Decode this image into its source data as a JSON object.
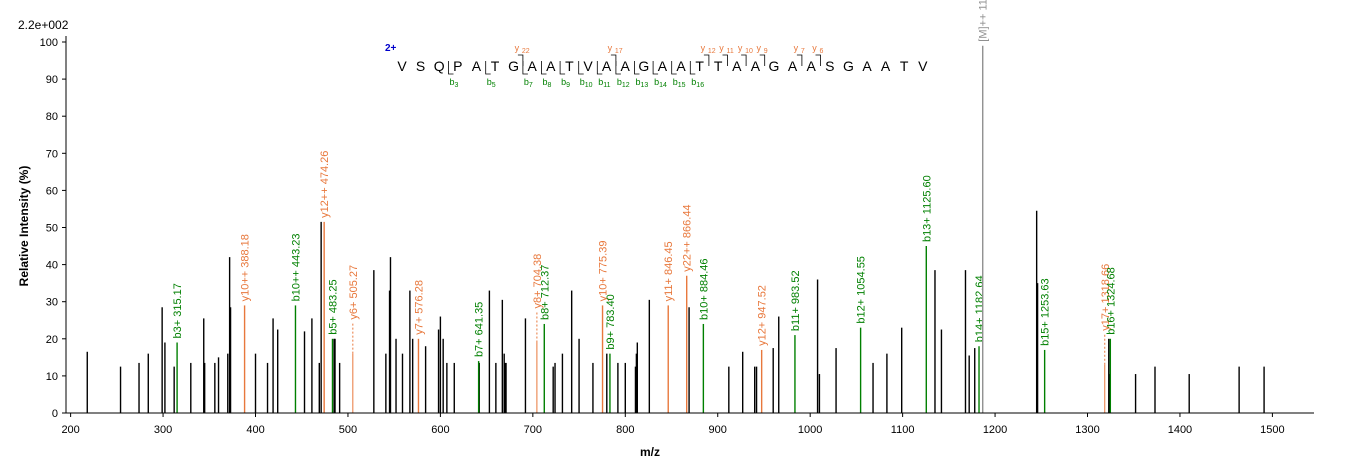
{
  "chart_data": {
    "type": "bar",
    "scale_label": "2.2e+002",
    "xlabel": "m/z",
    "ylabel": "Relative   Intensity (%)",
    "xlim": [
      195,
      1545
    ],
    "ylim": [
      0,
      100
    ],
    "xticks": [
      200,
      300,
      400,
      500,
      600,
      700,
      800,
      900,
      1000,
      1100,
      1200,
      1300,
      1400,
      1500
    ],
    "yticks": [
      0,
      10,
      20,
      30,
      40,
      50,
      60,
      70,
      80,
      90,
      100
    ],
    "colors": {
      "b": "#008000",
      "y": "#e8783c",
      "precursor": "#909090",
      "other": "#000000",
      "charge": "#0000cc"
    },
    "peaks": [
      {
        "mz": 218,
        "intensity": 16.5
      },
      {
        "mz": 254,
        "intensity": 12.5
      },
      {
        "mz": 274,
        "intensity": 13.5
      },
      {
        "mz": 284,
        "intensity": 16
      },
      {
        "mz": 299,
        "intensity": 28.5
      },
      {
        "mz": 302,
        "intensity": 19
      },
      {
        "mz": 312,
        "intensity": 12.5
      },
      {
        "mz": 330,
        "intensity": 13.5
      },
      {
        "mz": 344,
        "intensity": 25.5
      },
      {
        "mz": 345,
        "intensity": 13.5
      },
      {
        "mz": 356,
        "intensity": 13.5
      },
      {
        "mz": 360,
        "intensity": 15
      },
      {
        "mz": 370,
        "intensity": 16
      },
      {
        "mz": 372,
        "intensity": 42
      },
      {
        "mz": 373,
        "intensity": 28.5
      },
      {
        "mz": 400,
        "intensity": 16
      },
      {
        "mz": 413,
        "intensity": 13.5
      },
      {
        "mz": 419,
        "intensity": 25.5
      },
      {
        "mz": 424,
        "intensity": 22.5
      },
      {
        "mz": 453,
        "intensity": 22
      },
      {
        "mz": 461,
        "intensity": 25.5
      },
      {
        "mz": 469,
        "intensity": 13.5
      },
      {
        "mz": 471,
        "intensity": 51.5
      },
      {
        "mz": 485,
        "intensity": 20
      },
      {
        "mz": 486,
        "intensity": 20
      },
      {
        "mz": 491,
        "intensity": 13.5
      },
      {
        "mz": 528,
        "intensity": 38.5
      },
      {
        "mz": 541,
        "intensity": 16
      },
      {
        "mz": 545,
        "intensity": 33
      },
      {
        "mz": 546,
        "intensity": 42
      },
      {
        "mz": 552,
        "intensity": 20
      },
      {
        "mz": 559,
        "intensity": 16
      },
      {
        "mz": 567,
        "intensity": 33
      },
      {
        "mz": 570,
        "intensity": 20
      },
      {
        "mz": 584,
        "intensity": 18
      },
      {
        "mz": 598,
        "intensity": 22.5
      },
      {
        "mz": 600,
        "intensity": 26
      },
      {
        "mz": 603,
        "intensity": 20
      },
      {
        "mz": 607,
        "intensity": 13.5
      },
      {
        "mz": 615,
        "intensity": 13.5
      },
      {
        "mz": 642,
        "intensity": 13.5
      },
      {
        "mz": 653,
        "intensity": 33
      },
      {
        "mz": 660,
        "intensity": 13.5
      },
      {
        "mz": 667,
        "intensity": 30.5
      },
      {
        "mz": 669,
        "intensity": 16
      },
      {
        "mz": 670,
        "intensity": 13.5
      },
      {
        "mz": 671,
        "intensity": 13.5
      },
      {
        "mz": 692,
        "intensity": 25.5
      },
      {
        "mz": 722,
        "intensity": 12.5
      },
      {
        "mz": 724,
        "intensity": 13.5
      },
      {
        "mz": 732,
        "intensity": 16
      },
      {
        "mz": 742,
        "intensity": 33
      },
      {
        "mz": 750,
        "intensity": 20
      },
      {
        "mz": 765,
        "intensity": 13.5
      },
      {
        "mz": 780,
        "intensity": 16
      },
      {
        "mz": 792,
        "intensity": 13.5
      },
      {
        "mz": 800,
        "intensity": 13.5
      },
      {
        "mz": 811,
        "intensity": 12.5
      },
      {
        "mz": 812,
        "intensity": 16
      },
      {
        "mz": 813,
        "intensity": 19
      },
      {
        "mz": 826,
        "intensity": 30.5
      },
      {
        "mz": 869,
        "intensity": 28.5
      },
      {
        "mz": 912,
        "intensity": 12.5
      },
      {
        "mz": 927,
        "intensity": 16.5
      },
      {
        "mz": 940,
        "intensity": 12.5
      },
      {
        "mz": 942,
        "intensity": 12.5
      },
      {
        "mz": 960,
        "intensity": 17.5
      },
      {
        "mz": 966,
        "intensity": 26
      },
      {
        "mz": 1008,
        "intensity": 36
      },
      {
        "mz": 1010,
        "intensity": 10.5
      },
      {
        "mz": 1028,
        "intensity": 17.5
      },
      {
        "mz": 1068,
        "intensity": 13.5
      },
      {
        "mz": 1083,
        "intensity": 16
      },
      {
        "mz": 1099,
        "intensity": 23
      },
      {
        "mz": 1135,
        "intensity": 38.5
      },
      {
        "mz": 1142,
        "intensity": 22.5
      },
      {
        "mz": 1168,
        "intensity": 38.5
      },
      {
        "mz": 1172,
        "intensity": 15.5
      },
      {
        "mz": 1178,
        "intensity": 17.5
      },
      {
        "mz": 1245,
        "intensity": 54.5
      },
      {
        "mz": 1246,
        "intensity": 35
      },
      {
        "mz": 1323,
        "intensity": 20
      },
      {
        "mz": 1324,
        "intensity": 10.5
      },
      {
        "mz": 1352,
        "intensity": 10.5
      },
      {
        "mz": 1373,
        "intensity": 12.5
      },
      {
        "mz": 1410,
        "intensity": 10.5
      },
      {
        "mz": 1464,
        "intensity": 12.5
      },
      {
        "mz": 1491,
        "intensity": 12.5
      }
    ],
    "annotated_peaks": [
      {
        "mz": 315.17,
        "intensity": 19,
        "ion": "b",
        "label": "b3+  315.17"
      },
      {
        "mz": 388.18,
        "intensity": 29,
        "ion": "y",
        "label": "y10++  388.18"
      },
      {
        "mz": 443.23,
        "intensity": 29,
        "ion": "b",
        "label": "b10++  443.23"
      },
      {
        "mz": 474.26,
        "intensity": 51.5,
        "ion": "y",
        "label": "y12++  474.26"
      },
      {
        "mz": 483.25,
        "intensity": 20,
        "ion": "b",
        "label": "b5+  483.25"
      },
      {
        "mz": 505.27,
        "intensity": 16,
        "ion": "y",
        "label": "y6+  505.27",
        "dashed": true
      },
      {
        "mz": 576.28,
        "intensity": 20,
        "ion": "y",
        "label": "y7+  576.28"
      },
      {
        "mz": 641.35,
        "intensity": 14,
        "ion": "b",
        "label": "b7+  641.35"
      },
      {
        "mz": 704.38,
        "intensity": 19,
        "ion": "y",
        "label": "y8+  704.38",
        "dashed": true
      },
      {
        "mz": 712.37,
        "intensity": 24,
        "ion": "b",
        "label": "b8+  712.37"
      },
      {
        "mz": 775.39,
        "intensity": 29,
        "ion": "y",
        "label": "y10+  775.39"
      },
      {
        "mz": 783.4,
        "intensity": 16,
        "ion": "b",
        "label": "b9+  783.40"
      },
      {
        "mz": 846.45,
        "intensity": 29,
        "ion": "y",
        "label": "y11+  846.45"
      },
      {
        "mz": 866.44,
        "intensity": 37,
        "ion": "y",
        "label": "y22++  866.44"
      },
      {
        "mz": 884.46,
        "intensity": 24,
        "ion": "b",
        "label": "b10+  884.46"
      },
      {
        "mz": 947.52,
        "intensity": 17,
        "ion": "y",
        "label": "y12+  947.52"
      },
      {
        "mz": 983.52,
        "intensity": 21,
        "ion": "b",
        "label": "b11+  983.52"
      },
      {
        "mz": 1054.55,
        "intensity": 23,
        "ion": "b",
        "label": "b12+  1054.55"
      },
      {
        "mz": 1125.6,
        "intensity": 45,
        "ion": "b",
        "label": "b13+  1125.60"
      },
      {
        "mz": 1182.64,
        "intensity": 18,
        "ion": "b",
        "label": "b14+  1182.64"
      },
      {
        "mz": 1186.64,
        "intensity": 99,
        "ion": "precursor",
        "label": "[M]++  1186.64"
      },
      {
        "mz": 1253.63,
        "intensity": 17,
        "ion": "b",
        "label": "b15+  1253.63"
      },
      {
        "mz": 1318.66,
        "intensity": 13,
        "ion": "y",
        "label": "y17+  1318.66",
        "dashed": true
      },
      {
        "mz": 1324.68,
        "intensity": 20,
        "ion": "b",
        "label": "b16+  1324.68"
      }
    ],
    "sequence": {
      "charge": "2+",
      "residues": [
        "V",
        "S",
        "Q",
        "P",
        "A",
        "T",
        "G",
        "A",
        "A",
        "T",
        "V",
        "A",
        "A",
        "G",
        "A",
        "A",
        "T",
        "T",
        "A",
        "A",
        "G",
        "A",
        "A",
        "S",
        "G",
        "A",
        "A",
        "T",
        "V"
      ],
      "y_ions": [
        {
          "label": "y",
          "num": "22",
          "after": 6
        },
        {
          "label": "y",
          "num": "17",
          "after": 11
        },
        {
          "label": "y",
          "num": "12",
          "after": 16
        },
        {
          "label": "y",
          "num": "11",
          "after": 17
        },
        {
          "label": "y",
          "num": "10",
          "after": 18
        },
        {
          "label": "y",
          "num": "9",
          "after": 19
        },
        {
          "label": "y",
          "num": "7",
          "after": 21
        },
        {
          "label": "y",
          "num": "6",
          "after": 22
        }
      ],
      "b_ions": [
        {
          "label": "b",
          "num": "3",
          "after": 2
        },
        {
          "label": "b",
          "num": "5",
          "after": 4
        },
        {
          "label": "b",
          "num": "7",
          "after": 6
        },
        {
          "label": "b",
          "num": "8",
          "after": 7
        },
        {
          "label": "b",
          "num": "9",
          "after": 8
        },
        {
          "label": "b",
          "num": "10",
          "after": 9
        },
        {
          "label": "b",
          "num": "11",
          "after": 10
        },
        {
          "label": "b",
          "num": "12",
          "after": 11
        },
        {
          "label": "b",
          "num": "13",
          "after": 12
        },
        {
          "label": "b",
          "num": "14",
          "after": 13
        },
        {
          "label": "b",
          "num": "15",
          "after": 14
        },
        {
          "label": "b",
          "num": "16",
          "after": 15
        }
      ]
    }
  }
}
